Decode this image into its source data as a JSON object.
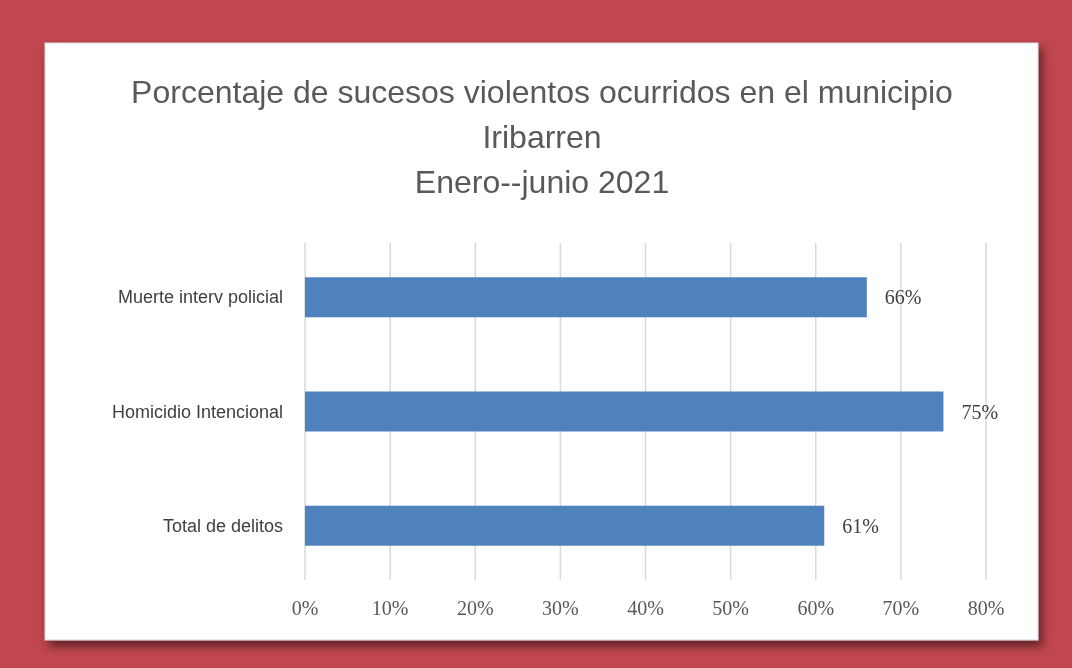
{
  "chart_data": {
    "type": "bar",
    "orientation": "horizontal",
    "title": "Porcentaje de sucesos violentos ocurridos en el municipio Iribarren",
    "subtitle": "Enero--junio 2021",
    "categories": [
      "Muerte interv policial",
      "Homicidio  Intencional",
      "Total de delitos"
    ],
    "values": [
      66,
      75,
      61
    ],
    "value_labels": [
      "66%",
      "75%",
      "61%"
    ],
    "color": "#4f81bd",
    "xlim": [
      0,
      80
    ],
    "xticks": [
      {
        "value": 0,
        "label": "0%"
      },
      {
        "value": 10,
        "label": "10%"
      },
      {
        "value": 20,
        "label": "20%"
      },
      {
        "value": 30,
        "label": "30%"
      },
      {
        "value": 40,
        "label": "40%"
      },
      {
        "value": 50,
        "label": "50%"
      },
      {
        "value": 60,
        "label": "60%"
      },
      {
        "value": 70,
        "label": "70%"
      },
      {
        "value": 80,
        "label": "80%"
      }
    ],
    "grid": "x"
  }
}
